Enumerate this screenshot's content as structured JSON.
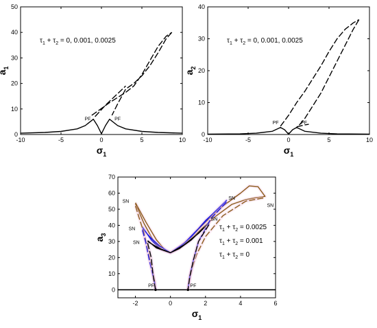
{
  "chart_data": [
    {
      "type": "line",
      "ylabel": "a",
      "ylabel_sub": "1",
      "xlabel": "σ",
      "xlabel_sub": "1",
      "xlim": [
        -10,
        10
      ],
      "ylim": [
        0,
        50
      ],
      "xticks": [
        -10,
        -5,
        0,
        5,
        10
      ],
      "yticks": [
        0,
        10,
        20,
        30,
        40,
        50
      ],
      "grid": false,
      "annotation": "τ1 + τ2 = 0,  0.001,  0.0025",
      "point_labels": [
        {
          "text": "PF",
          "x": -1.7,
          "y": 5.5
        },
        {
          "text": "PF",
          "x": 2.0,
          "y": 5.5
        }
      ],
      "series": [
        {
          "style": "solid",
          "points": [
            [
              -10,
              0.5
            ],
            [
              -7,
              0.8
            ],
            [
              -5,
              1.2
            ],
            [
              -3,
              2.2
            ],
            [
              -2,
              3.5
            ],
            [
              -1,
              6.0
            ],
            [
              -0.5,
              3.5
            ],
            [
              0,
              0.3
            ],
            [
              0.5,
              3.5
            ],
            [
              1,
              6.0
            ],
            [
              2,
              3.5
            ],
            [
              3,
              2.2
            ],
            [
              5,
              1.2
            ],
            [
              7,
              0.8
            ],
            [
              10,
              0.5
            ]
          ]
        },
        {
          "style": "dashed",
          "points": [
            [
              -1.2,
              7.5
            ],
            [
              0,
              10.2
            ],
            [
              1,
              12.5
            ],
            [
              2,
              14.5
            ],
            [
              3,
              16.5
            ],
            [
              4,
              19
            ],
            [
              5,
              23.5
            ],
            [
              6,
              29
            ],
            [
              7,
              34.5
            ],
            [
              8,
              38.5
            ],
            [
              8.7,
              40
            ]
          ]
        },
        {
          "style": "dashed",
          "points": [
            [
              8.7,
              40
            ],
            [
              8,
              37.5
            ],
            [
              7,
              32
            ],
            [
              6,
              27
            ],
            [
              5,
              23
            ],
            [
              4,
              20
            ],
            [
              3,
              17.8
            ],
            [
              2,
              12
            ],
            [
              1.3,
              7.5
            ]
          ]
        },
        {
          "style": "dashed",
          "points": [
            [
              -0.8,
              7
            ],
            [
              0.5,
              11.5
            ],
            [
              2,
              16
            ],
            [
              3,
              19
            ]
          ]
        }
      ]
    },
    {
      "type": "line",
      "ylabel": "a",
      "ylabel_sub": "2",
      "xlabel": "σ",
      "xlabel_sub": "1",
      "xlim": [
        -10,
        10
      ],
      "ylim": [
        0,
        40
      ],
      "xticks": [
        -10,
        -5,
        0,
        5,
        10
      ],
      "yticks": [
        0,
        10,
        20,
        30,
        40
      ],
      "grid": false,
      "annotation": "τ1 + τ2 = 0,  0.001,  0.0025",
      "point_labels": [
        {
          "text": "PF",
          "x": -1.6,
          "y": 3.2
        },
        {
          "text": "PF",
          "x": 1.9,
          "y": 3.2
        }
      ],
      "series": [
        {
          "style": "solid",
          "points": [
            [
              -10,
              0.1
            ],
            [
              -6,
              0.2
            ],
            [
              -4,
              0.4
            ],
            [
              -2,
              1
            ],
            [
              -1,
              2.2
            ],
            [
              -0.5,
              1.5
            ],
            [
              0,
              0.1
            ],
            [
              0.5,
              1.5
            ],
            [
              1,
              2.2
            ],
            [
              2,
              1
            ],
            [
              4,
              0.4
            ],
            [
              6,
              0.2
            ],
            [
              10,
              0.1
            ]
          ]
        },
        {
          "style": "dashed",
          "points": [
            [
              -1,
              2.6
            ],
            [
              0,
              6
            ],
            [
              1,
              10
            ],
            [
              2,
              13.5
            ],
            [
              3,
              17.5
            ],
            [
              4,
              21.5
            ],
            [
              5,
              26
            ],
            [
              6,
              30
            ],
            [
              7,
              33
            ],
            [
              8,
              35
            ],
            [
              8.7,
              36
            ]
          ]
        },
        {
          "style": "dashed",
          "points": [
            [
              8.7,
              36
            ],
            [
              8,
              33
            ],
            [
              7,
              28
            ],
            [
              6,
              23
            ],
            [
              5,
              18
            ],
            [
              4,
              13
            ],
            [
              3,
              9
            ],
            [
              2,
              5
            ],
            [
              1.2,
              2.6
            ]
          ]
        },
        {
          "style": "dashed",
          "points": [
            [
              1,
              2.4
            ],
            [
              2,
              3
            ],
            [
              2.5,
              3.2
            ]
          ]
        }
      ]
    },
    {
      "type": "line",
      "ylabel": "a",
      "ylabel_sub": "3",
      "xlabel": "σ",
      "xlabel_sub": "1",
      "xlim": [
        -3,
        6
      ],
      "ylim": [
        -5,
        70
      ],
      "xticks": [
        -2,
        0,
        2,
        4,
        6
      ],
      "yticks": [
        0,
        10,
        20,
        30,
        40,
        50,
        60,
        70
      ],
      "grid": false,
      "legend": [
        {
          "text": "τ1 + τ2 = 0.0025",
          "color": "#8B5A1A"
        },
        {
          "text": "τ1 + τ2 = 0.001",
          "color": "#1A1AE0"
        },
        {
          "text": "τ1 + τ2 = 0",
          "color": "#000000"
        }
      ],
      "point_labels": [
        {
          "text": "SN",
          "x": -2.55,
          "y": 54
        },
        {
          "text": "SN",
          "x": 5.7,
          "y": 51.5
        },
        {
          "text": "SN",
          "x": -2.2,
          "y": 37
        },
        {
          "text": "SN",
          "x": 3.5,
          "y": 56
        },
        {
          "text": "SN",
          "x": -1.95,
          "y": 28.5
        },
        {
          "text": "SN",
          "x": 2.5,
          "y": 43
        },
        {
          "text": "PF",
          "x": -1.1,
          "y": 1.5
        },
        {
          "text": "PF",
          "x": 1.3,
          "y": 1.5
        }
      ],
      "series": [
        {
          "name": "zero_line",
          "color": "#000000",
          "style": "solid",
          "points": [
            [
              -3,
              0
            ],
            [
              6,
              0
            ]
          ]
        },
        {
          "color": "#8B5A1A",
          "style": "solid",
          "points": [
            [
              -2,
              54
            ],
            [
              -1.4,
              42
            ],
            [
              -0.8,
              31
            ],
            [
              -0.3,
              24.5
            ],
            [
              0,
              23
            ],
            [
              0.5,
              26.5
            ],
            [
              1,
              31
            ],
            [
              2,
              42
            ],
            [
              3,
              52
            ],
            [
              4,
              60
            ],
            [
              4.5,
              64.5
            ],
            [
              5,
              64
            ],
            [
              5.4,
              58
            ],
            [
              4.8,
              57
            ],
            [
              4.3,
              56
            ],
            [
              3.5,
              53
            ],
            [
              2.5,
              45
            ],
            [
              1.5,
              35
            ],
            [
              1,
              30
            ],
            [
              0.5,
              26
            ],
            [
              0,
              23
            ],
            [
              -0.5,
              25
            ],
            [
              -1,
              31
            ],
            [
              -1.5,
              41
            ],
            [
              -2,
              53.5
            ]
          ]
        },
        {
          "color": "#1A1AE0",
          "style": "solid",
          "points": [
            [
              -1.6,
              39
            ],
            [
              -1.1,
              31
            ],
            [
              -0.6,
              25.5
            ],
            [
              0,
              23
            ],
            [
              0.8,
              29
            ],
            [
              1.6,
              38
            ],
            [
              2.4,
              47
            ],
            [
              3.2,
              55.5
            ],
            [
              2.8,
              51
            ],
            [
              2,
              43
            ],
            [
              1.2,
              33
            ],
            [
              0.5,
              26
            ],
            [
              0,
              23
            ],
            [
              -0.6,
              27
            ],
            [
              -1.1,
              32
            ],
            [
              -1.6,
              38
            ]
          ]
        },
        {
          "color": "#000000",
          "style": "solid",
          "points": [
            [
              -1.3,
              30.5
            ],
            [
              -0.8,
              26
            ],
            [
              0,
              23
            ],
            [
              0.8,
              28
            ],
            [
              1.6,
              35
            ],
            [
              2.2,
              41.5
            ],
            [
              1.9,
              38.5
            ],
            [
              1.2,
              31
            ],
            [
              0.5,
              25.5
            ],
            [
              0,
              23
            ],
            [
              -0.6,
              25.5
            ],
            [
              -1,
              28
            ],
            [
              -1.3,
              30
            ]
          ]
        },
        {
          "color": "#8B5A1A",
          "style": "dashed",
          "points": [
            [
              -2,
              52
            ],
            [
              -1.8,
              45
            ],
            [
              -1.5,
              35
            ],
            [
              -1.2,
              20
            ],
            [
              -1,
              10
            ],
            [
              -0.9,
              5
            ],
            [
              -0.85,
              0
            ]
          ]
        },
        {
          "color": "#1A1AE0",
          "style": "dashed",
          "points": [
            [
              -1.6,
              37
            ],
            [
              -1.4,
              29
            ],
            [
              -1.2,
              18
            ],
            [
              -1,
              9
            ],
            [
              -0.9,
              4
            ],
            [
              -0.85,
              0
            ]
          ]
        },
        {
          "color": "#000000",
          "style": "dashed",
          "points": [
            [
              -1.3,
              29
            ],
            [
              -1.1,
              20
            ],
            [
              -1,
              10
            ],
            [
              -0.9,
              3
            ],
            [
              -0.85,
              0
            ]
          ]
        },
        {
          "color": "#8B5A1A",
          "style": "dashed",
          "points": [
            [
              5.3,
              57
            ],
            [
              4.3,
              55
            ],
            [
              3,
              46
            ],
            [
              2,
              33
            ],
            [
              1.5,
              22
            ],
            [
              1.2,
              12
            ],
            [
              1.05,
              4
            ],
            [
              1,
              0
            ]
          ]
        },
        {
          "color": "#1A1AE0",
          "style": "dashed",
          "points": [
            [
              3.2,
              54.5
            ],
            [
              2.3,
              44
            ],
            [
              1.6,
              30
            ],
            [
              1.3,
              18
            ],
            [
              1.1,
              8
            ],
            [
              1,
              0
            ]
          ]
        },
        {
          "color": "#000000",
          "style": "dashed",
          "points": [
            [
              2.2,
              40.5
            ],
            [
              1.6,
              30
            ],
            [
              1.3,
              18
            ],
            [
              1.1,
              8
            ],
            [
              1,
              0
            ]
          ]
        }
      ]
    }
  ]
}
